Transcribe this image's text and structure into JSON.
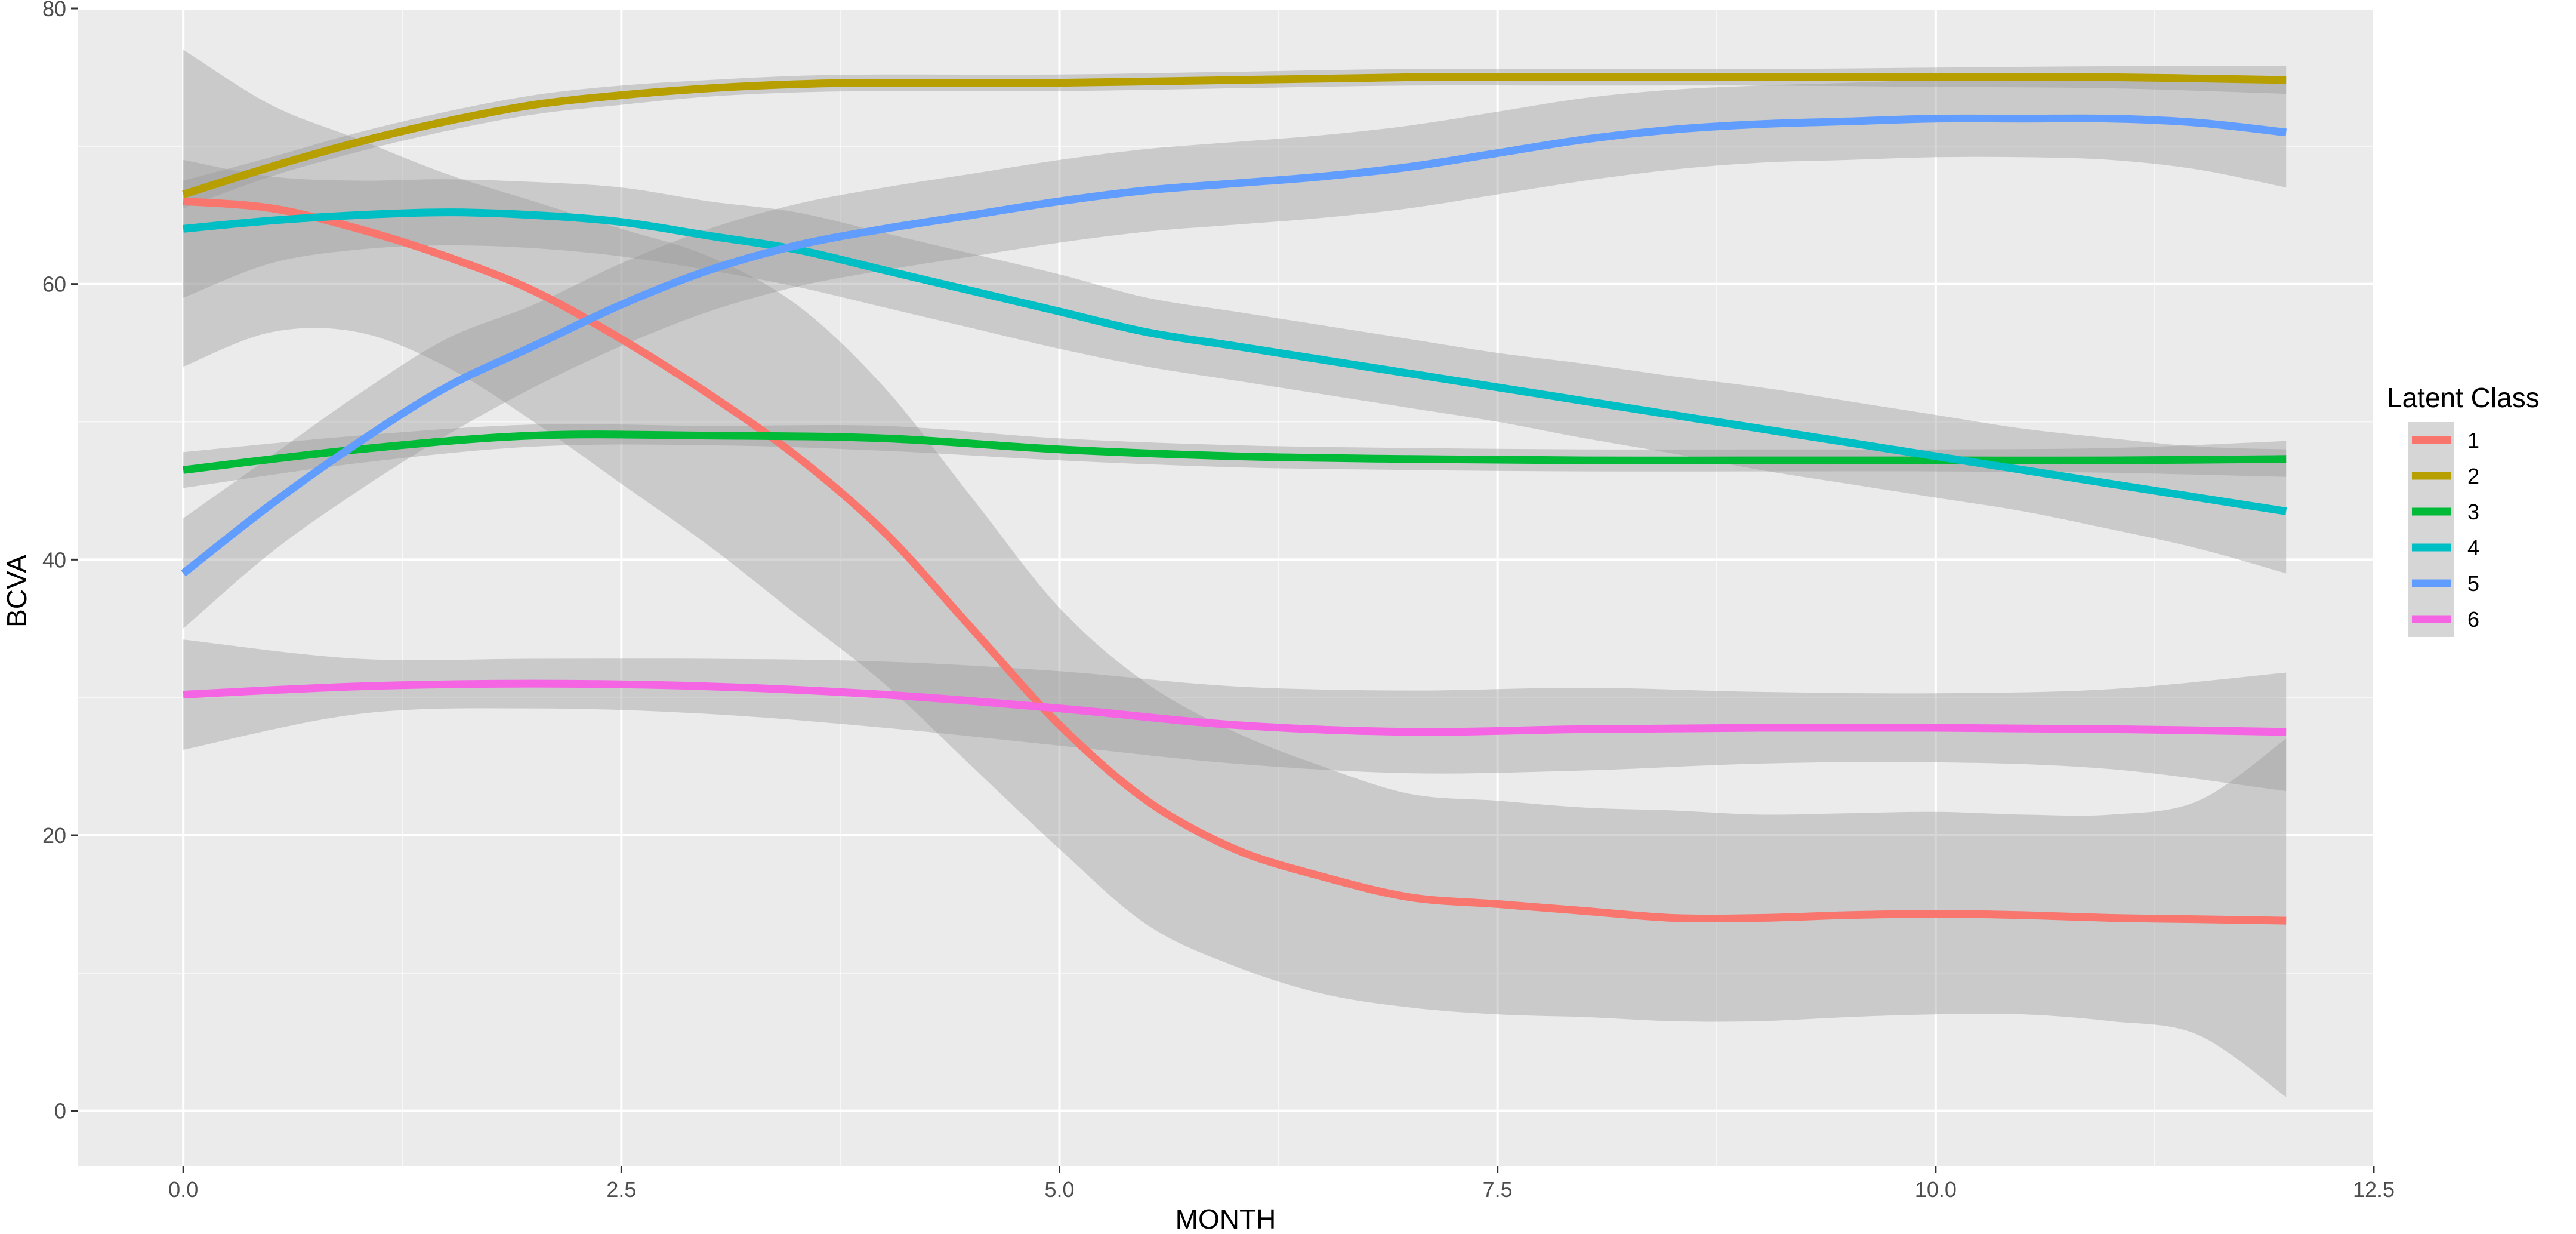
{
  "chart_data": {
    "type": "line",
    "title": "",
    "xlabel": "MONTH",
    "ylabel": "BCVA",
    "xlim": [
      -0.6,
      12.5
    ],
    "ylim": [
      -4,
      80
    ],
    "x_ticks": [
      0.0,
      2.5,
      5.0,
      7.5,
      10.0,
      12.5
    ],
    "x_tick_labels": [
      "0.0",
      "2.5",
      "5.0",
      "7.5",
      "10.0",
      "12.5"
    ],
    "y_ticks": [
      0,
      20,
      40,
      60,
      80
    ],
    "y_tick_labels": [
      "0",
      "20",
      "40",
      "60",
      "80"
    ],
    "grid": true,
    "legend": {
      "title": "Latent Class",
      "position": "right"
    },
    "colors": {
      "panel_background": "#ebebeb",
      "grid": "#ffffff",
      "ribbon": "#999999"
    },
    "series": [
      {
        "name": "1",
        "color": "#f8766d",
        "x": [
          0,
          0.5,
          1,
          1.5,
          2,
          2.5,
          3,
          3.5,
          4,
          4.5,
          5,
          5.5,
          6,
          6.5,
          7,
          7.5,
          8,
          8.5,
          9,
          9.5,
          10,
          10.5,
          11,
          11.5,
          12
        ],
        "y": [
          66,
          65.5,
          64,
          62,
          59.5,
          56,
          52,
          47.5,
          42,
          35,
          28,
          22.5,
          19,
          17,
          15.5,
          15,
          14.5,
          14,
          14,
          14.2,
          14.3,
          14.2,
          14,
          13.9,
          13.8
        ],
        "lower": [
          54,
          56.5,
          56.5,
          54,
          50,
          45.5,
          41,
          36,
          31,
          25,
          19,
          13.5,
          10.5,
          8.5,
          7.5,
          7,
          6.8,
          6.5,
          6.5,
          6.8,
          7,
          7,
          6.5,
          5.5,
          1
        ],
        "upper": [
          77,
          73,
          70.5,
          68,
          66,
          64,
          62,
          58.5,
          52.5,
          44.5,
          36.5,
          31,
          27.5,
          25,
          23,
          22.5,
          22,
          21.8,
          21.5,
          21.6,
          21.7,
          21.5,
          21.5,
          22.5,
          27
        ]
      },
      {
        "name": "2",
        "color": "#b79f00",
        "x": [
          0,
          0.5,
          1,
          1.5,
          2,
          2.5,
          3,
          3.5,
          4,
          5,
          6,
          7,
          8,
          9,
          10,
          11,
          12
        ],
        "y": [
          66.5,
          68.5,
          70.3,
          71.8,
          73,
          73.7,
          74.2,
          74.5,
          74.6,
          74.6,
          74.8,
          75,
          75,
          75,
          75,
          75,
          74.8
        ],
        "lower": [
          65.5,
          67.8,
          69.6,
          71.1,
          72.3,
          73,
          73.6,
          73.9,
          74,
          74,
          74.2,
          74.4,
          74.4,
          74.4,
          74.3,
          74.2,
          73.8
        ],
        "upper": [
          67.5,
          69.2,
          71,
          72.5,
          73.7,
          74.4,
          74.8,
          75.1,
          75.2,
          75.2,
          75.4,
          75.6,
          75.6,
          75.6,
          75.7,
          75.8,
          75.8
        ]
      },
      {
        "name": "3",
        "color": "#00ba38",
        "x": [
          0,
          1,
          2,
          3,
          4,
          5,
          6,
          7,
          8,
          9,
          10,
          11,
          12
        ],
        "y": [
          46.5,
          48,
          49,
          49,
          48.8,
          48,
          47.5,
          47.3,
          47.2,
          47.2,
          47.2,
          47.2,
          47.3
        ],
        "lower": [
          45.2,
          47,
          48.2,
          48.3,
          47.9,
          47.2,
          46.7,
          46.5,
          46.4,
          46.4,
          46.4,
          46.3,
          46
        ],
        "upper": [
          47.8,
          49,
          49.8,
          49.7,
          49.7,
          48.8,
          48.3,
          48.1,
          48,
          48,
          48,
          48.1,
          48.6
        ]
      },
      {
        "name": "4",
        "color": "#00bfc4",
        "x": [
          0,
          0.5,
          1,
          1.5,
          2,
          2.5,
          3,
          3.5,
          4,
          4.5,
          5,
          5.5,
          6,
          6.5,
          7,
          7.5,
          8,
          8.5,
          9,
          9.5,
          10,
          10.5,
          11,
          11.5,
          12
        ],
        "y": [
          64,
          64.6,
          65,
          65.2,
          65,
          64.5,
          63.5,
          62.5,
          61,
          59.5,
          58,
          56.5,
          55.5,
          54.5,
          53.5,
          52.5,
          51.5,
          50.5,
          49.5,
          48.5,
          47.5,
          46.5,
          45.5,
          44.5,
          43.5
        ],
        "lower": [
          59,
          61.5,
          62.5,
          62.8,
          62.6,
          62,
          61,
          59.8,
          58.3,
          56.8,
          55.3,
          54,
          53,
          52,
          51,
          50,
          48.8,
          47.7,
          46.5,
          45.5,
          44.5,
          43.5,
          42.2,
          40.8,
          39
        ],
        "upper": [
          69,
          67.8,
          67.5,
          67.6,
          67.4,
          67,
          66,
          65.2,
          63.7,
          62.2,
          60.7,
          59,
          58,
          57,
          56,
          55,
          54.2,
          53.3,
          52.5,
          51.5,
          50.5,
          49.5,
          48.8,
          48.2,
          48
        ]
      },
      {
        "name": "5",
        "color": "#619cff",
        "x": [
          0,
          0.5,
          1,
          1.5,
          2,
          2.5,
          3,
          3.5,
          4,
          4.5,
          5,
          5.5,
          6,
          6.5,
          7,
          7.5,
          8,
          8.5,
          9,
          9.5,
          10,
          10.5,
          11,
          11.5,
          12
        ],
        "y": [
          39,
          44,
          48.5,
          52.5,
          55.5,
          58.5,
          61,
          62.8,
          64,
          65,
          66,
          66.8,
          67.3,
          67.8,
          68.5,
          69.5,
          70.5,
          71.2,
          71.6,
          71.8,
          72,
          72,
          72,
          71.7,
          71
        ],
        "lower": [
          35,
          40.5,
          45,
          49,
          52.5,
          55.5,
          58,
          59.8,
          61,
          62,
          63,
          63.8,
          64.3,
          64.8,
          65.5,
          66.5,
          67.5,
          68.3,
          68.8,
          69,
          69.2,
          69.2,
          69,
          68.3,
          67
        ],
        "upper": [
          43,
          47.5,
          52,
          56,
          58.5,
          61.5,
          64,
          65.8,
          67,
          68,
          69,
          69.8,
          70.3,
          70.8,
          71.5,
          72.5,
          73.5,
          74.1,
          74.4,
          74.6,
          74.8,
          74.8,
          75,
          75.1,
          75
        ]
      },
      {
        "name": "6",
        "color": "#f564e3",
        "x": [
          0,
          1,
          2,
          3,
          4,
          5,
          6,
          7,
          8,
          9,
          10,
          11,
          12
        ],
        "y": [
          30.2,
          30.8,
          31,
          30.8,
          30.2,
          29.2,
          28,
          27.5,
          27.7,
          27.8,
          27.8,
          27.7,
          27.5
        ],
        "lower": [
          26.2,
          28.8,
          29.2,
          28.8,
          27.8,
          26.5,
          25.2,
          24.5,
          24.7,
          25.2,
          25.3,
          24.8,
          23.2
        ],
        "upper": [
          34.2,
          32.8,
          32.8,
          32.8,
          32.6,
          31.9,
          30.8,
          30.5,
          30.7,
          30.4,
          30.3,
          30.6,
          31.8
        ]
      }
    ]
  }
}
